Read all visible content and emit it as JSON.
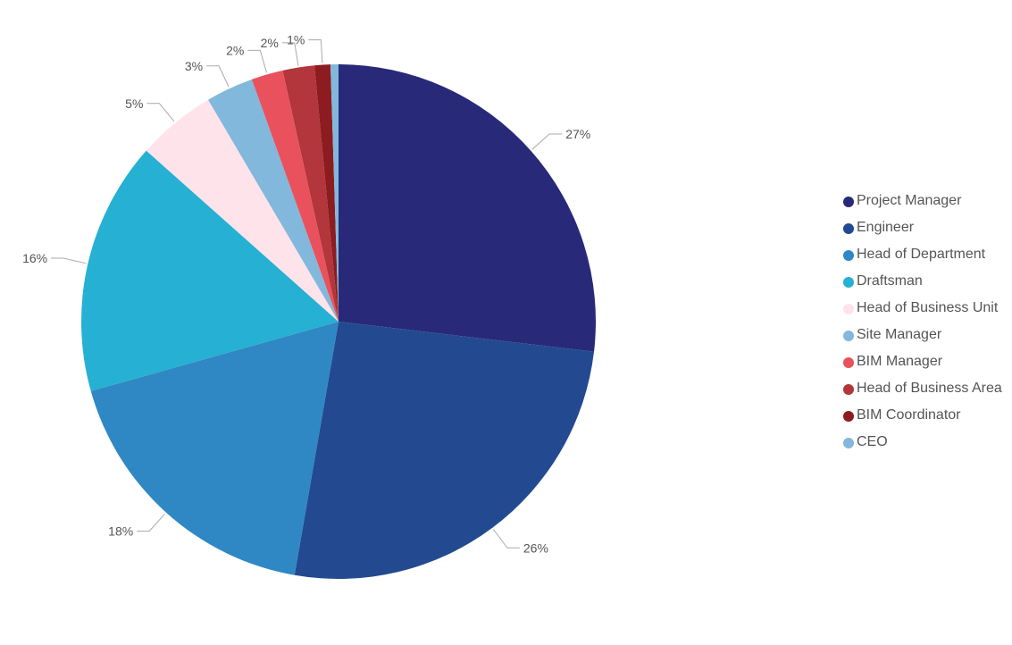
{
  "chart_data": {
    "type": "pie",
    "legend_position": "right",
    "slices": [
      {
        "name": "Project Manager",
        "value": 27,
        "label": "27%",
        "color": "#282978"
      },
      {
        "name": "Engineer",
        "value": 26,
        "label": "26%",
        "color": "#234a91"
      },
      {
        "name": "Head of Department",
        "value": 18,
        "label": "18%",
        "color": "#2f88c4"
      },
      {
        "name": "Draftsman",
        "value": 16,
        "label": "16%",
        "color": "#26b0d3"
      },
      {
        "name": "Head of Business Unit",
        "value": 5,
        "label": "5%",
        "color": "#ffe3ea"
      },
      {
        "name": "Site Manager",
        "value": 3,
        "label": "3%",
        "color": "#82b8dc"
      },
      {
        "name": "BIM Manager",
        "value": 2,
        "label": "2%",
        "color": "#e9525c"
      },
      {
        "name": "Head of Business Area",
        "value": 2,
        "label": "2%",
        "color": "#b2363c"
      },
      {
        "name": "BIM Coordinator",
        "value": 1,
        "label": "1%",
        "color": "#8c1c20"
      },
      {
        "name": "CEO",
        "value": 0.5,
        "label": "",
        "color": "#82b8dc"
      }
    ]
  }
}
